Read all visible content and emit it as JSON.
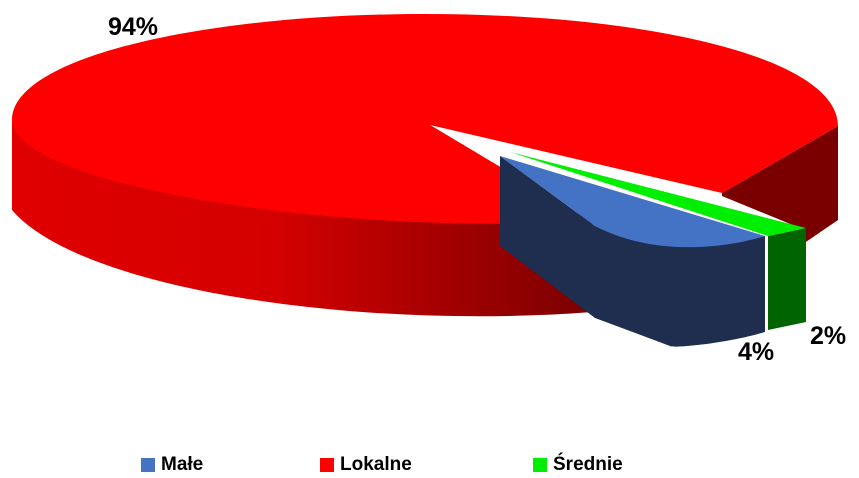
{
  "chart_data": {
    "type": "pie",
    "three_d": true,
    "categories": [
      "Małe",
      "Lokalne",
      "Średnie"
    ],
    "values": [
      4,
      94,
      2
    ],
    "labels": [
      "4%",
      "94%",
      "2%"
    ],
    "colors": [
      "#4472C4",
      "#FF0000",
      "#00EE00"
    ],
    "side_colors": [
      "#1F2E4F",
      "#8B0000",
      "#006400"
    ],
    "exploded": [
      "Małe",
      "Średnie"
    ],
    "legend_placement": "bottom",
    "title": ""
  },
  "legend": {
    "items": [
      {
        "label": "Małe",
        "color": "#4472C4"
      },
      {
        "label": "Lokalne",
        "color": "#FF0000"
      },
      {
        "label": "Średnie",
        "color": "#00EE00"
      }
    ]
  }
}
